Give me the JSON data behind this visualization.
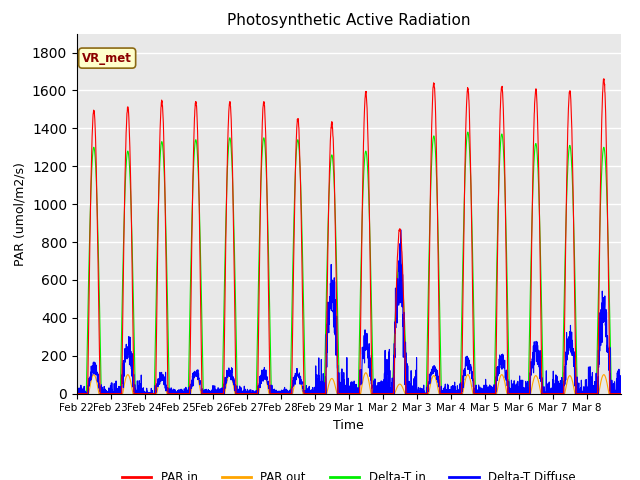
{
  "title": "Photosynthetic Active Radiation",
  "xlabel": "Time",
  "ylabel": "PAR (umol/m2/s)",
  "annotation": "VR_met",
  "ylim": [
    0,
    1900
  ],
  "yticks": [
    0,
    200,
    400,
    600,
    800,
    1000,
    1200,
    1400,
    1600,
    1800
  ],
  "colors": {
    "PAR in": "#ff0000",
    "PAR out": "#ffa500",
    "Delta-T in": "#00ee00",
    "Delta-T Diffuse": "#0000ff"
  },
  "background_color": "#ffffff",
  "plot_bg": "#e8e8e8",
  "xtick_labels": [
    "Feb 22",
    "Feb 23",
    "Feb 24",
    "Feb 25",
    "Feb 26",
    "Feb 27",
    "Feb 28",
    "Feb 29",
    "Mar 1",
    "Mar 2",
    "Mar 3",
    "Mar 4",
    "Mar 5",
    "Mar 6",
    "Mar 7",
    "Mar 8"
  ],
  "days": 16,
  "par_in_peaks": [
    1490,
    1510,
    1540,
    1540,
    1540,
    1540,
    1450,
    1430,
    1590,
    870,
    1640,
    1610,
    1620,
    1600,
    1600,
    1660
  ],
  "par_out_peaks": [
    100,
    100,
    95,
    100,
    100,
    100,
    100,
    80,
    110,
    50,
    95,
    100,
    100,
    95,
    95,
    100
  ],
  "delta_t_in_peaks": [
    1300,
    1280,
    1330,
    1340,
    1350,
    1350,
    1340,
    1260,
    1280,
    700,
    1360,
    1380,
    1370,
    1320,
    1310,
    1300
  ],
  "delta_t_diffuse_peaks": [
    130,
    240,
    90,
    100,
    115,
    100,
    100,
    550,
    270,
    620,
    130,
    160,
    180,
    230,
    280,
    445
  ],
  "figsize": [
    6.4,
    4.8
  ],
  "dpi": 100
}
